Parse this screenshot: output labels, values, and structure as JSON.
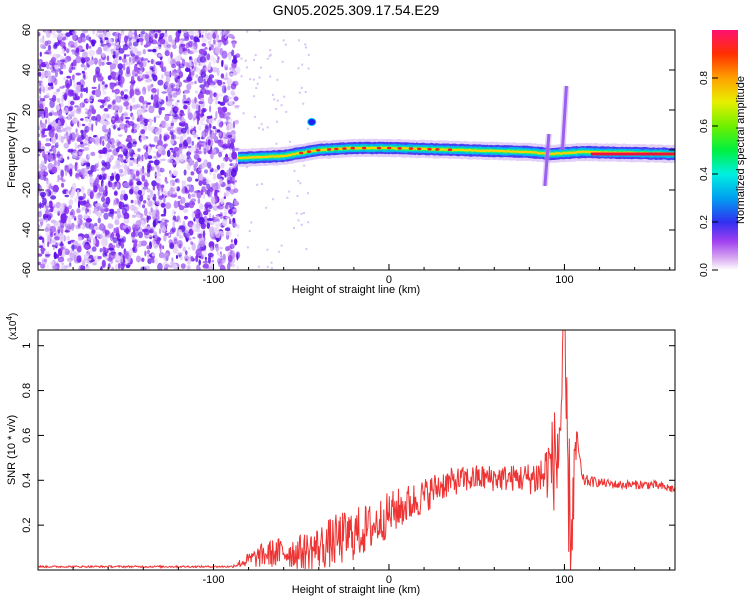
{
  "title": "GN05.2025.309.17.54.E29",
  "chart_data": [
    {
      "type": "heatmap",
      "title": "GN05.2025.309.17.54.E29",
      "xlabel": "Height of straight line (km)",
      "ylabel": "Frequency (Hz)",
      "xlim": [
        -200,
        163
      ],
      "ylim": [
        -60,
        60
      ],
      "x_ticks": [
        -100,
        0,
        100
      ],
      "y_ticks": [
        -60,
        -40,
        -20,
        0,
        20,
        40,
        60
      ],
      "colorbar": {
        "label": "Normalized spectral amplitude",
        "range": [
          0,
          1
        ],
        "ticks": [
          "0.0",
          "0.2",
          "0.4",
          "0.6",
          "0.8"
        ]
      },
      "noise_region": {
        "x_from": -200,
        "x_to": -86,
        "freq_span": [
          -60,
          60
        ]
      },
      "ridge": [
        {
          "x": -86,
          "f": -4
        },
        {
          "x": -60,
          "f": -3
        },
        {
          "x": -40,
          "f": 0
        },
        {
          "x": -20,
          "f": 1
        },
        {
          "x": 0,
          "f": 1
        },
        {
          "x": 40,
          "f": 0
        },
        {
          "x": 80,
          "f": -1
        },
        {
          "x": 92,
          "f": -2
        },
        {
          "x": 110,
          "f": -1
        },
        {
          "x": 163,
          "f": -2
        }
      ],
      "features": [
        {
          "x": 100,
          "f_from": 0,
          "f_to": 32,
          "label": "rising streak"
        },
        {
          "x": 90,
          "f_from": -18,
          "f_to": 8,
          "label": "burst"
        },
        {
          "x": -44,
          "f": 14,
          "label": "blob"
        }
      ]
    },
    {
      "type": "line",
      "xlabel": "Height of straight line (km)",
      "ylabel": "SNR (10 * v/v)",
      "y_multiplier": "(x10",
      "y_multiplier_exp": "4",
      "y_multiplier_close": ")",
      "xlim": [
        -200,
        163
      ],
      "ylim": [
        0,
        1.07
      ],
      "x_ticks": [
        -100,
        0,
        100
      ],
      "y_ticks": [
        0.2,
        0.4,
        0.6,
        0.8,
        1.0
      ],
      "color": "#ee3333",
      "series": [
        {
          "name": "SNR",
          "x": [
            -200,
            -160,
            -120,
            -90,
            -78,
            -70,
            -60,
            -50,
            -40,
            -30,
            -20,
            -10,
            0,
            10,
            20,
            30,
            40,
            50,
            60,
            70,
            80,
            88,
            92,
            96,
            98,
            100,
            102,
            104,
            106,
            108,
            110,
            120,
            130,
            140,
            150,
            163
          ],
          "y": [
            0.015,
            0.015,
            0.015,
            0.015,
            0.05,
            0.07,
            0.08,
            0.08,
            0.1,
            0.13,
            0.16,
            0.19,
            0.25,
            0.29,
            0.33,
            0.38,
            0.4,
            0.41,
            0.41,
            0.41,
            0.41,
            0.42,
            0.48,
            0.5,
            0.7,
            1.05,
            0.4,
            0.15,
            0.52,
            0.55,
            0.4,
            0.39,
            0.38,
            0.38,
            0.38,
            0.36
          ],
          "noise_amplitude": [
            0.004,
            0.004,
            0.004,
            0.004,
            0.04,
            0.06,
            0.07,
            0.08,
            0.1,
            0.12,
            0.12,
            0.11,
            0.1,
            0.09,
            0.08,
            0.07,
            0.06,
            0.06,
            0.06,
            0.06,
            0.07,
            0.12,
            0.16,
            0.3,
            0.35,
            0.2,
            0.3,
            0.3,
            0.12,
            0.06,
            0.03,
            0.02,
            0.02,
            0.02,
            0.02,
            0.02
          ]
        }
      ]
    }
  ]
}
